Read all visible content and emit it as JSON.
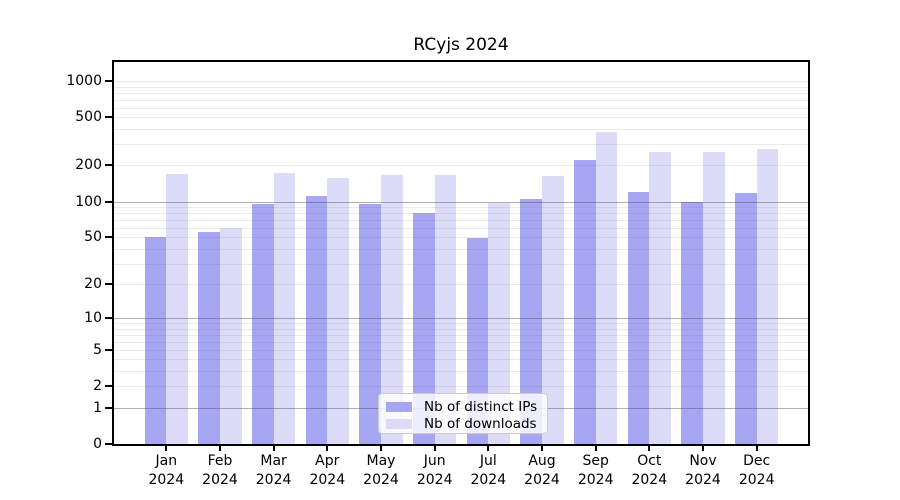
{
  "chart_data": {
    "type": "bar",
    "title": "RCyjs 2024",
    "categories": [
      "Jan",
      "Feb",
      "Mar",
      "Apr",
      "May",
      "Jun",
      "Jul",
      "Aug",
      "Sep",
      "Oct",
      "Nov",
      "Dec"
    ],
    "category_year": "2024",
    "series": [
      {
        "name": "Nb of distinct IPs",
        "color": "#a6a6f2",
        "values": [
          50,
          56,
          95,
          111,
          95,
          80,
          49,
          104,
          220,
          120,
          99,
          117
        ]
      },
      {
        "name": "Nb of downloads",
        "color": "#dcdcf8",
        "values": [
          168,
          60,
          174,
          157,
          166,
          166,
          98,
          163,
          380,
          258,
          258,
          273
        ]
      }
    ],
    "y_axis": {
      "scale": "log10(value+1)",
      "tick_labels": [
        "1000",
        "500",
        "200",
        "100",
        "50",
        "20",
        "10",
        "5",
        "2",
        "1",
        "0"
      ]
    },
    "grid": {
      "on": true,
      "major_values": [
        1,
        10,
        100
      ],
      "minor_values": [
        2,
        3,
        4,
        5,
        6,
        7,
        8,
        9,
        20,
        30,
        40,
        50,
        60,
        70,
        80,
        90,
        200,
        300,
        400,
        500,
        600,
        700,
        800,
        900,
        1000
      ]
    },
    "legend_position": "lower center",
    "colors": {
      "background": "#ffffff",
      "axis": "#000000",
      "major_grid": "#b3b3b3",
      "minor_grid": "#ececec"
    }
  }
}
